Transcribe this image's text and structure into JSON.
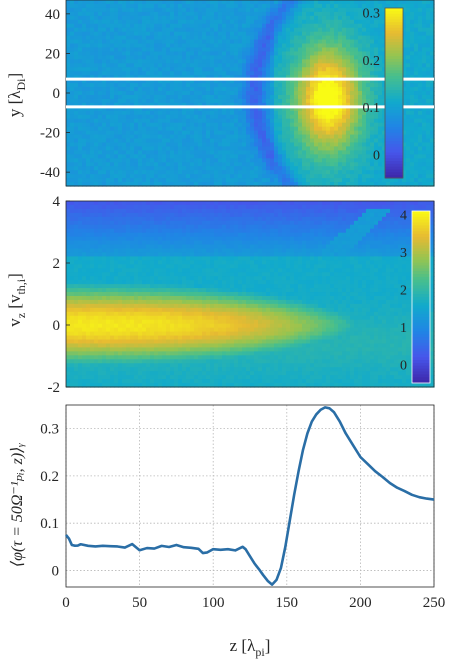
{
  "chart_data": [
    {
      "type": "heatmap",
      "title": "",
      "xlabel": "",
      "ylabel_main": "y [λ",
      "ylabel_sub": "Di",
      "ylabel_close": "]",
      "xlim": [
        0,
        250
      ],
      "ylim": [
        -47,
        47
      ],
      "yticks": [
        "40",
        "20",
        "0",
        "-20",
        "-40"
      ],
      "colorbar": {
        "range": [
          -0.05,
          0.31
        ],
        "ticks": [
          "0.3",
          "0.2",
          "0.1",
          "0"
        ]
      },
      "overlay_lines_y": [
        7,
        -7
      ],
      "features": {
        "background": 0.09,
        "blob_center": [
          178,
          -3
        ],
        "blob_peak": 0.31
      }
    },
    {
      "type": "heatmap",
      "title": "",
      "xlabel": "",
      "ylabel_main": "v",
      "ylabel_sub1": "z",
      "ylabel_mid": " [v",
      "ylabel_sub2": "th,i",
      "ylabel_close": "]",
      "xlim": [
        0,
        250
      ],
      "ylim": [
        -2,
        4
      ],
      "yticks": [
        "4",
        "2",
        "0",
        "-2"
      ],
      "colorbar": {
        "range": [
          -0.5,
          4.1
        ],
        "ticks": [
          "4",
          "3",
          "2",
          "1",
          "0"
        ]
      },
      "features": {
        "core_peak": 3.9,
        "core_width_v": 1.05,
        "edge_z": 185
      }
    },
    {
      "type": "line",
      "title": "",
      "xlabel_main": "z [λ",
      "xlabel_sub": "pi",
      "xlabel_close": "]",
      "ylabel": "⟨φ(τ = 50Ω⁻¹ₚᵢ, z)⟩ᵧ",
      "xlim": [
        0,
        250
      ],
      "ylim": [
        -0.035,
        0.35
      ],
      "xticks": [
        "0",
        "50",
        "100",
        "150",
        "200",
        "250"
      ],
      "yticks": [
        "0.3",
        "0.2",
        "0.1",
        "0"
      ],
      "grid": true,
      "series": [
        {
          "color": "#2a6ea6",
          "x": [
            0,
            2,
            4,
            6,
            8,
            10,
            15,
            20,
            25,
            30,
            35,
            40,
            45,
            50,
            55,
            60,
            65,
            70,
            75,
            80,
            85,
            90,
            93,
            96,
            100,
            105,
            110,
            115,
            120,
            122,
            125,
            128,
            131,
            134,
            137,
            140,
            143,
            146,
            149,
            152,
            155,
            158,
            161,
            164,
            167,
            170,
            173,
            176,
            179,
            182,
            186,
            190,
            195,
            200,
            205,
            210,
            215,
            220,
            225,
            230,
            235,
            240,
            245,
            250
          ],
          "y": [
            0.075,
            0.068,
            0.055,
            0.05,
            0.052,
            0.053,
            0.051,
            0.053,
            0.05,
            0.054,
            0.052,
            0.047,
            0.055,
            0.045,
            0.05,
            0.048,
            0.052,
            0.05,
            0.056,
            0.052,
            0.05,
            0.045,
            0.035,
            0.04,
            0.047,
            0.046,
            0.042,
            0.045,
            0.05,
            0.045,
            0.03,
            0.015,
            0.003,
            -0.01,
            -0.022,
            -0.03,
            -0.02,
            0.005,
            0.05,
            0.105,
            0.16,
            0.21,
            0.255,
            0.29,
            0.315,
            0.33,
            0.34,
            0.345,
            0.343,
            0.335,
            0.315,
            0.29,
            0.265,
            0.24,
            0.225,
            0.21,
            0.198,
            0.185,
            0.175,
            0.168,
            0.16,
            0.155,
            0.152,
            0.15
          ]
        }
      ]
    }
  ]
}
